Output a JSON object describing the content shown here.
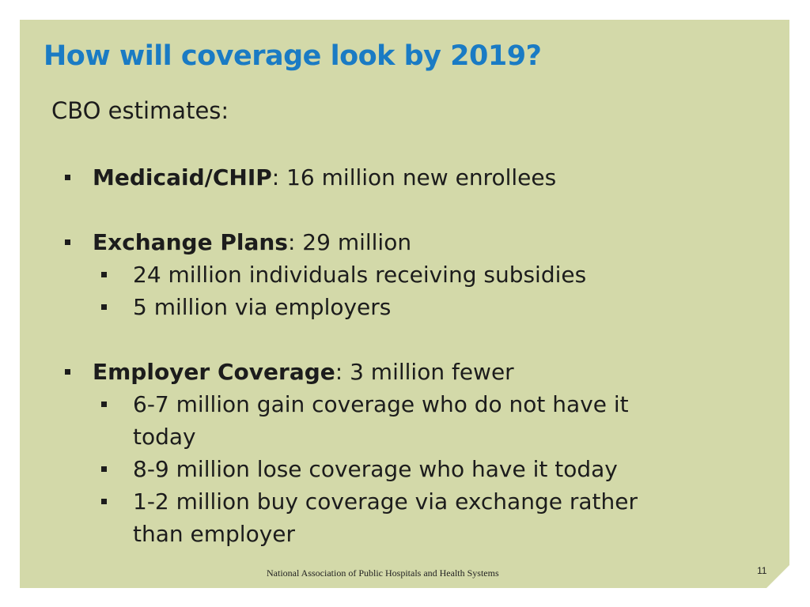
{
  "slide": {
    "title": "How will coverage look by 2019?",
    "subtitle": "CBO estimates:",
    "bullets": [
      {
        "label": "Medicaid/CHIP",
        "text": ": 16 million new enrollees",
        "sub": []
      },
      {
        "label": "Exchange Plans",
        "text": ":  29 million",
        "sub": [
          "24 million individuals receiving subsidies",
          "5 million via employers"
        ]
      },
      {
        "label": "Employer Coverage",
        "text": ": 3 million fewer",
        "sub": [
          "6-7 million gain coverage who do not have it",
          "today",
          "8-9 million lose coverage who have it today",
          "1-2 million buy coverage via exchange rather",
          "than employer"
        ]
      }
    ],
    "footer": "National Association of Public Hospitals and Health Systems",
    "page_number": "11"
  },
  "colors": {
    "background": "#d3d9a9",
    "title": "#1a7bc4",
    "text": "#1c1c1c"
  }
}
